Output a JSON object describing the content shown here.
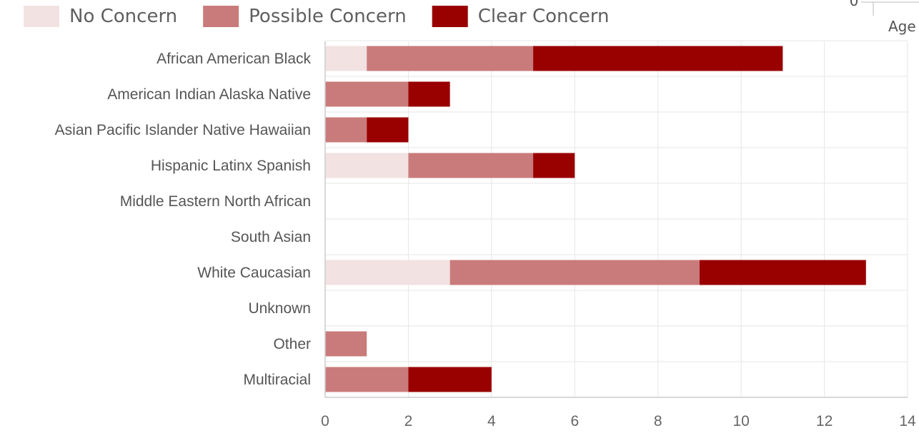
{
  "chart_data": {
    "type": "bar",
    "orientation": "horizontal",
    "stacked": true,
    "categories": [
      "African American Black",
      "American Indian Alaska Native",
      "Asian Pacific Islander Native Hawaiian",
      "Hispanic Latinx Spanish",
      "Middle Eastern North African",
      "South Asian",
      "White Caucasian",
      "Unknown",
      "Other",
      "Multiracial"
    ],
    "series": [
      {
        "name": "No Concern",
        "color": "#f2e2e2",
        "values": [
          1,
          0,
          0,
          2,
          0,
          0,
          3,
          0,
          0,
          0
        ]
      },
      {
        "name": "Possible Concern",
        "color": "#c97b7b",
        "values": [
          4,
          2,
          1,
          3,
          0,
          0,
          6,
          0,
          1,
          2
        ]
      },
      {
        "name": "Clear Concern",
        "color": "#990000",
        "values": [
          6,
          1,
          1,
          1,
          0,
          0,
          4,
          0,
          0,
          2
        ]
      }
    ],
    "xlim": [
      0,
      14
    ],
    "xticks": [
      "0",
      "2",
      "4",
      "6",
      "8",
      "10",
      "12",
      "14"
    ],
    "grid": true,
    "legend_position": "top-left",
    "xlabel": "",
    "ylabel": "",
    "title": ""
  },
  "partial_neighbor_chart": {
    "tick_label": "0",
    "axis_label": "Age"
  }
}
